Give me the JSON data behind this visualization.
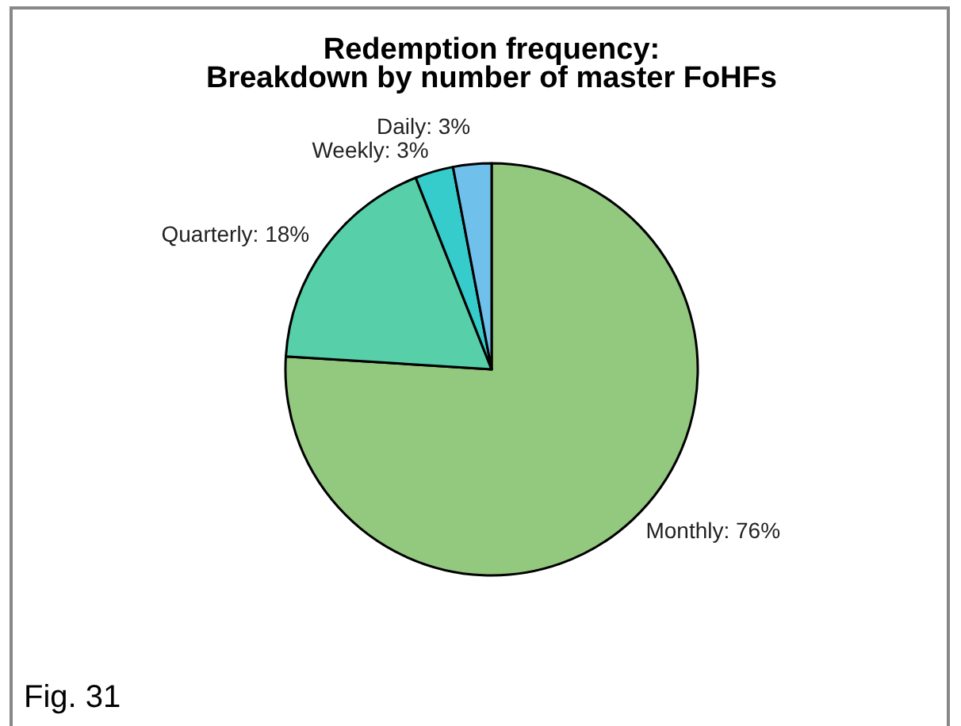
{
  "chart_data": {
    "type": "pie",
    "title": "Redemption frequency:\nBreakdown by number of master FoHFs",
    "categories": [
      "Monthly",
      "Quarterly",
      "Weekly",
      "Daily"
    ],
    "values": [
      76,
      18,
      3,
      3
    ],
    "value_labels": [
      "76%",
      "18%",
      "3%",
      "3%"
    ],
    "colors": [
      "#93c87f",
      "#57cfa8",
      "#36cccc",
      "#70c0ec"
    ],
    "annotations": [
      "Fig. 31"
    ]
  }
}
